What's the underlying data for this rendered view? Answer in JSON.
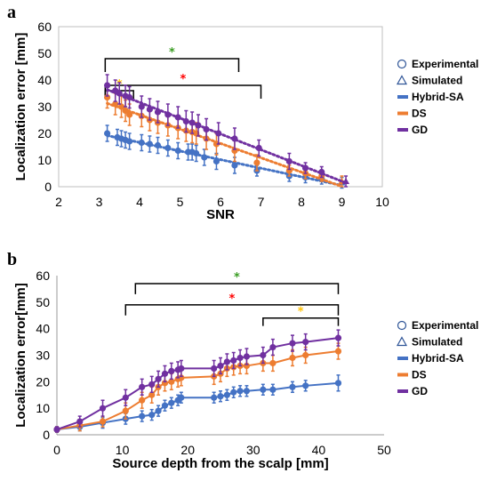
{
  "chart_data": [
    {
      "panel": "a",
      "type": "scatter",
      "xlabel": "SNR",
      "ylabel": "Localization error [mm]",
      "xlim": [
        2,
        10
      ],
      "ylim": [
        0,
        60
      ],
      "xticks": [
        2,
        3,
        4,
        5,
        6,
        7,
        8,
        9,
        10
      ],
      "yticks": [
        0,
        10,
        20,
        30,
        40,
        50,
        60
      ],
      "border": "box",
      "legend_position": "right",
      "legend": {
        "markers": [
          {
            "label": "Experimental",
            "symbol": "circle"
          },
          {
            "label": "Simulated",
            "symbol": "triangle"
          }
        ],
        "series": [
          {
            "label": "Hybrid-SA",
            "color": "#4472C4"
          },
          {
            "label": "DS",
            "color": "#ED7D31"
          },
          {
            "label": "GD",
            "color": "#7030A0"
          }
        ]
      },
      "series": [
        {
          "name": "Hybrid-SA",
          "color": "#4472C4",
          "line": "dotted",
          "x": [
            3.2,
            3.45,
            3.55,
            3.65,
            3.75,
            4.05,
            4.25,
            4.45,
            4.7,
            4.95,
            5.2,
            5.3,
            5.4,
            5.6,
            5.9,
            6.35,
            6.9,
            7.7,
            8.1,
            8.5,
            9.0
          ],
          "y": [
            20,
            18.5,
            18,
            17.5,
            17,
            16.5,
            16,
            15.5,
            14.5,
            13.5,
            13,
            13,
            12.5,
            11,
            9.5,
            8,
            6,
            4,
            3.5,
            3,
            1.5
          ],
          "err": [
            3,
            3,
            3,
            3,
            3,
            3,
            3,
            3,
            3,
            3,
            3,
            3,
            3,
            3,
            3,
            3,
            2,
            2,
            2,
            2,
            2
          ]
        },
        {
          "name": "DS",
          "color": "#ED7D31",
          "line": "dotted",
          "x": [
            3.2,
            3.4,
            3.55,
            3.65,
            3.75,
            4.05,
            4.25,
            4.45,
            4.7,
            4.95,
            5.15,
            5.3,
            5.4,
            5.65,
            5.9,
            6.35,
            6.9,
            7.7,
            8.1,
            8.5,
            9.0
          ],
          "y": [
            33.5,
            31,
            30,
            28.5,
            27,
            26.5,
            25,
            24,
            23,
            22,
            21,
            20.5,
            20,
            18,
            16,
            13.5,
            9,
            6,
            5,
            4,
            2
          ],
          "err": [
            4,
            4,
            4,
            4,
            4,
            4,
            4,
            4,
            4,
            4,
            4,
            4,
            4,
            4,
            4,
            4,
            3,
            2,
            2,
            2,
            2
          ]
        },
        {
          "name": "GD",
          "color": "#7030A0",
          "line": "dotted",
          "x": [
            3.2,
            3.4,
            3.5,
            3.65,
            3.75,
            4.05,
            4.25,
            4.45,
            4.7,
            4.95,
            5.15,
            5.3,
            5.45,
            5.65,
            5.95,
            6.35,
            6.95,
            7.7,
            8.1,
            8.5,
            9.1
          ],
          "y": [
            38,
            36,
            35,
            34,
            33.5,
            30,
            29,
            28,
            27,
            26,
            24.5,
            24,
            23,
            21.5,
            20,
            18,
            14.5,
            9.5,
            7,
            5.5,
            2
          ],
          "err": [
            4,
            4,
            4,
            4,
            4,
            4,
            4,
            4,
            4,
            4,
            4,
            4,
            4,
            4,
            4,
            4,
            3,
            3,
            2,
            2,
            2
          ]
        }
      ],
      "brackets": [
        {
          "x0": 3.15,
          "x1": 6.45,
          "y": 48,
          "tip": 43,
          "star_color": "#3A9D23",
          "label": "*"
        },
        {
          "x0": 3.15,
          "x1": 7.0,
          "y": 38,
          "tip": 33,
          "star_color": "#FF0000",
          "label": "*"
        },
        {
          "x0": 3.15,
          "x1": 3.85,
          "y": 36,
          "tip": 33,
          "star_color": "#FFC000",
          "label": "*"
        }
      ]
    },
    {
      "panel": "b",
      "type": "line",
      "xlabel": "Source depth from the scalp [mm]",
      "ylabel": "Localization error[mm]",
      "xlim": [
        0,
        50
      ],
      "ylim": [
        0,
        60
      ],
      "xticks": [
        0,
        10,
        20,
        30,
        40,
        50
      ],
      "yticks": [
        0,
        10,
        20,
        30,
        40,
        50,
        60
      ],
      "border": "axes",
      "legend_position": "right",
      "legend": {
        "markers": [
          {
            "label": "Experimental",
            "symbol": "circle"
          },
          {
            "label": "Simulated",
            "symbol": "triangle"
          }
        ],
        "series": [
          {
            "label": "Hybrid-SA",
            "color": "#4472C4"
          },
          {
            "label": "DS",
            "color": "#ED7D31"
          },
          {
            "label": "GD",
            "color": "#7030A0"
          }
        ]
      },
      "series": [
        {
          "name": "Hybrid-SA",
          "color": "#4472C4",
          "line": "solid",
          "x": [
            0,
            3.5,
            7,
            10.5,
            13,
            14.5,
            15.5,
            16.5,
            17.5,
            18.5,
            19,
            24,
            25,
            26,
            27,
            28,
            29,
            31.5,
            33,
            36,
            38,
            43
          ],
          "y": [
            2,
            3,
            4.5,
            6,
            7,
            7.5,
            9,
            11,
            12,
            13,
            14,
            14,
            14.5,
            15,
            16,
            16.5,
            16.5,
            17,
            17,
            18,
            18.5,
            19.5
          ],
          "err": [
            1,
            1.5,
            2,
            2,
            2,
            2,
            2,
            2,
            2,
            2,
            2,
            2,
            2,
            2,
            2,
            2,
            2,
            2,
            2,
            2,
            2,
            3
          ]
        },
        {
          "name": "DS",
          "color": "#ED7D31",
          "line": "solid",
          "x": [
            0,
            3.5,
            7,
            10.5,
            13,
            14.5,
            15.5,
            16.5,
            17.5,
            18.5,
            19,
            24,
            25,
            26,
            27,
            28,
            29,
            31.5,
            33,
            36,
            38,
            43
          ],
          "y": [
            2,
            3.5,
            5,
            9,
            13,
            15,
            18,
            19.5,
            20,
            21,
            21.5,
            22,
            23,
            25,
            25.5,
            26,
            26,
            27,
            27,
            29,
            30,
            31.5
          ],
          "err": [
            1,
            2,
            2,
            3,
            3,
            3,
            3,
            3,
            3,
            3,
            3,
            3,
            3,
            3,
            3,
            3,
            3,
            3,
            3,
            3,
            3,
            3
          ]
        },
        {
          "name": "GD",
          "color": "#7030A0",
          "line": "solid",
          "x": [
            0,
            3.5,
            7,
            10.5,
            13,
            14.5,
            15.5,
            16.5,
            17.5,
            18.5,
            19,
            24,
            25,
            26,
            27,
            28,
            29,
            31.5,
            33,
            36,
            38,
            43
          ],
          "y": [
            2,
            5,
            10,
            14,
            18,
            19,
            21,
            23,
            24,
            24.5,
            25,
            25,
            26,
            27.5,
            28,
            29,
            29.5,
            30,
            33,
            34.5,
            35,
            36.5
          ],
          "err": [
            1,
            2,
            3,
            3,
            3,
            3,
            3,
            3,
            3,
            3,
            3,
            3,
            3,
            3,
            3,
            3,
            3,
            3,
            3,
            3,
            3,
            3
          ]
        }
      ],
      "brackets": [
        {
          "x0": 12,
          "x1": 43,
          "y": 57,
          "tip": 53,
          "star_color": "#3A9D23",
          "label": "*"
        },
        {
          "x0": 10.5,
          "x1": 43,
          "y": 49,
          "tip": 45,
          "star_color": "#FF0000",
          "label": "*"
        },
        {
          "x0": 31.5,
          "x1": 43,
          "y": 44,
          "tip": 41,
          "star_color": "#FFC000",
          "label": "*"
        }
      ]
    }
  ]
}
